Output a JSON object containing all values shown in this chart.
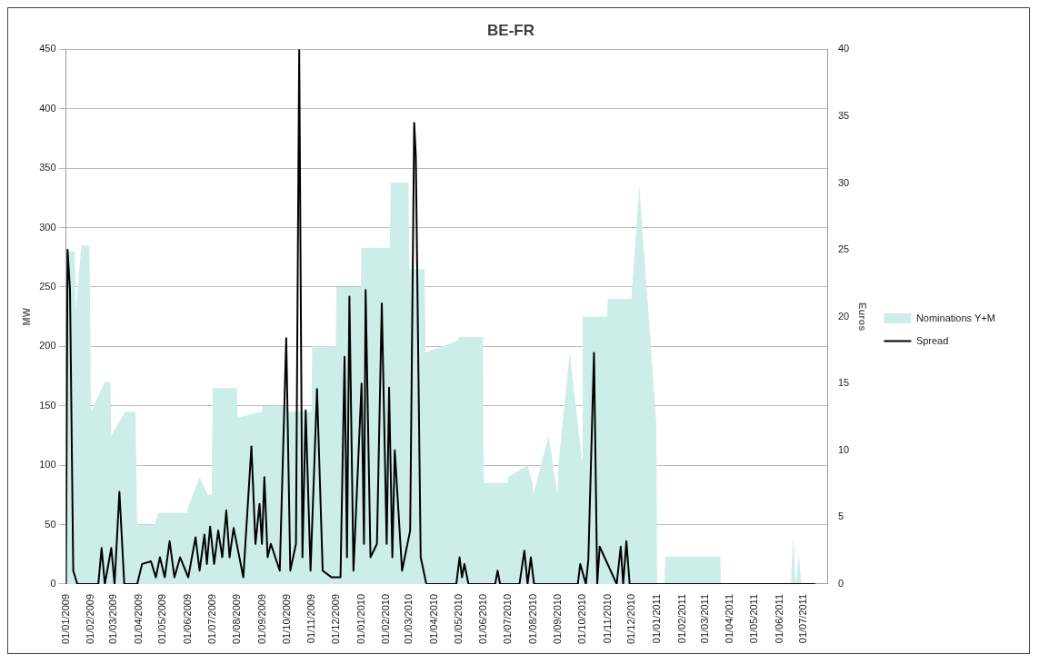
{
  "chart_data": {
    "type": "area",
    "title": "BE-FR",
    "ylabel": "MW",
    "y2label": "Euros",
    "xlim": [
      "2009-01-01",
      "2011-07-31"
    ],
    "xticks": [
      {
        "value": "2009-01-01",
        "label": "01/01/2009"
      },
      {
        "value": "2009-02-01",
        "label": "01/02/2009"
      },
      {
        "value": "2009-03-01",
        "label": "01/03/2009"
      },
      {
        "value": "2009-04-01",
        "label": "01/04/2009"
      },
      {
        "value": "2009-05-01",
        "label": "01/05/2009"
      },
      {
        "value": "2009-06-01",
        "label": "01/06/2009"
      },
      {
        "value": "2009-07-01",
        "label": "01/07/2009"
      },
      {
        "value": "2009-08-01",
        "label": "01/08/2009"
      },
      {
        "value": "2009-09-01",
        "label": "01/09/2009"
      },
      {
        "value": "2009-10-01",
        "label": "01/10/2009"
      },
      {
        "value": "2009-11-01",
        "label": "01/11/2009"
      },
      {
        "value": "2009-12-01",
        "label": "01/12/2009"
      },
      {
        "value": "2010-01-01",
        "label": "01/01/2010"
      },
      {
        "value": "2010-02-01",
        "label": "01/02/2010"
      },
      {
        "value": "2010-03-01",
        "label": "01/03/2010"
      },
      {
        "value": "2010-04-01",
        "label": "01/04/2010"
      },
      {
        "value": "2010-05-01",
        "label": "01/05/2010"
      },
      {
        "value": "2010-06-01",
        "label": "01/06/2010"
      },
      {
        "value": "2010-07-01",
        "label": "01/07/2010"
      },
      {
        "value": "2010-08-01",
        "label": "01/08/2010"
      },
      {
        "value": "2010-09-01",
        "label": "01/09/2010"
      },
      {
        "value": "2010-10-01",
        "label": "01/10/2010"
      },
      {
        "value": "2010-11-01",
        "label": "01/11/2010"
      },
      {
        "value": "2010-12-01",
        "label": "01/12/2010"
      },
      {
        "value": "2011-01-01",
        "label": "01/01/2011"
      },
      {
        "value": "2011-02-01",
        "label": "01/02/2011"
      },
      {
        "value": "2011-03-01",
        "label": "01/03/2011"
      },
      {
        "value": "2011-04-01",
        "label": "01/04/2011"
      },
      {
        "value": "2011-05-01",
        "label": "01/05/2011"
      },
      {
        "value": "2011-06-01",
        "label": "01/06/2011"
      },
      {
        "value": "2011-07-01",
        "label": "01/07/2011"
      }
    ],
    "ylim": [
      0,
      450
    ],
    "yticks": [
      0,
      50,
      100,
      150,
      200,
      250,
      300,
      350,
      400,
      450
    ],
    "y2lim": [
      0,
      40
    ],
    "y2ticks": [
      0,
      5,
      10,
      15,
      20,
      25,
      30,
      35,
      40
    ],
    "grid": "y",
    "legend": "right",
    "series": [
      {
        "name": "Nominations Y+M",
        "color": "#cdeee8",
        "x": [
          "2009-01-01",
          "2009-01-12",
          "2009-01-13",
          "2009-01-20",
          "2009-01-30",
          "2009-02-01",
          "2009-02-18",
          "2009-02-25",
          "2009-02-26",
          "2009-03-15",
          "2009-03-28",
          "2009-03-30",
          "2009-04-20",
          "2009-04-25",
          "2009-05-31",
          "2009-06-01",
          "2009-06-15",
          "2009-06-25",
          "2009-06-30",
          "2009-07-01",
          "2009-07-31",
          "2009-08-01",
          "2009-08-31",
          "2009-09-01",
          "2009-09-30",
          "2009-10-01",
          "2009-10-31",
          "2009-11-01",
          "2009-11-30",
          "2009-12-01",
          "2009-12-31",
          "2010-01-01",
          "2010-02-05",
          "2010-02-06",
          "2010-02-28",
          "2010-03-01",
          "2010-03-20",
          "2010-03-21",
          "2010-04-30",
          "2010-05-01",
          "2010-05-31",
          "2010-06-01",
          "2010-06-30",
          "2010-07-01",
          "2010-07-25",
          "2010-07-31",
          "2010-08-01",
          "2010-08-20",
          "2010-08-31",
          "2010-09-01",
          "2010-09-15",
          "2010-09-30",
          "2010-10-01",
          "2010-10-31",
          "2010-11-01",
          "2010-11-30",
          "2010-12-10",
          "2010-12-20",
          "2010-12-31",
          "2011-01-01",
          "2011-01-10",
          "2011-01-11",
          "2011-03-20",
          "2011-03-21",
          "2011-06-15",
          "2011-06-18",
          "2011-06-21",
          "2011-06-25",
          "2011-06-28",
          "2011-07-15"
        ],
        "values": [
          280,
          280,
          230,
          285,
          285,
          145,
          170,
          170,
          125,
          145,
          145,
          50,
          50,
          60,
          60,
          65,
          90,
          75,
          75,
          165,
          165,
          140,
          145,
          150,
          150,
          145,
          145,
          200,
          200,
          250,
          250,
          283,
          283,
          338,
          338,
          265,
          265,
          195,
          205,
          208,
          208,
          85,
          85,
          90,
          100,
          85,
          75,
          125,
          75,
          100,
          195,
          105,
          225,
          225,
          240,
          240,
          335,
          240,
          135,
          0,
          0,
          23,
          23,
          0,
          0,
          40,
          0,
          25,
          0,
          0
        ]
      },
      {
        "name": "Spread",
        "type": "line",
        "axis": "y2",
        "color": "#000000",
        "x": [
          "2009-01-01",
          "2009-01-03",
          "2009-01-06",
          "2009-01-10",
          "2009-01-15",
          "2009-02-10",
          "2009-02-14",
          "2009-02-18",
          "2009-02-26",
          "2009-03-02",
          "2009-03-08",
          "2009-03-14",
          "2009-03-30",
          "2009-04-05",
          "2009-04-16",
          "2009-04-22",
          "2009-04-27",
          "2009-05-03",
          "2009-05-09",
          "2009-05-15",
          "2009-05-22",
          "2009-06-01",
          "2009-06-10",
          "2009-06-15",
          "2009-06-21",
          "2009-06-24",
          "2009-06-28",
          "2009-07-03",
          "2009-07-08",
          "2009-07-13",
          "2009-07-18",
          "2009-07-22",
          "2009-07-27",
          "2009-08-08",
          "2009-08-18",
          "2009-08-23",
          "2009-08-28",
          "2009-08-31",
          "2009-09-03",
          "2009-09-07",
          "2009-09-11",
          "2009-09-22",
          "2009-09-30",
          "2009-10-05",
          "2009-10-12",
          "2009-10-16",
          "2009-10-20",
          "2009-10-24",
          "2009-10-30",
          "2009-11-07",
          "2009-11-14",
          "2009-11-25",
          "2009-12-06",
          "2009-12-11",
          "2009-12-14",
          "2009-12-17",
          "2009-12-22",
          "2010-01-01",
          "2010-01-04",
          "2010-01-06",
          "2010-01-12",
          "2010-01-20",
          "2010-01-26",
          "2010-02-01",
          "2010-02-04",
          "2010-02-08",
          "2010-02-11",
          "2010-02-20",
          "2010-03-02",
          "2010-03-07",
          "2010-03-09",
          "2010-03-15",
          "2010-03-22",
          "2010-04-28",
          "2010-05-02",
          "2010-05-05",
          "2010-05-08",
          "2010-05-13",
          "2010-06-15",
          "2010-06-18",
          "2010-06-21",
          "2010-07-15",
          "2010-07-21",
          "2010-07-25",
          "2010-07-29",
          "2010-08-02",
          "2010-09-25",
          "2010-09-28",
          "2010-10-05",
          "2010-10-08",
          "2010-10-15",
          "2010-10-19",
          "2010-10-22",
          "2010-11-12",
          "2010-11-17",
          "2010-11-20",
          "2010-11-24",
          "2010-11-28",
          "2011-07-15"
        ],
        "values": [
          0,
          25,
          22,
          1,
          0,
          0,
          2.7,
          0,
          2.7,
          0,
          6.9,
          0,
          0,
          1.5,
          1.7,
          0.5,
          2,
          0.5,
          3.2,
          0.5,
          2,
          0.5,
          3.5,
          1,
          3.7,
          1.5,
          4.3,
          1.5,
          4,
          2,
          5.5,
          2,
          4.2,
          0.5,
          10.3,
          3,
          6,
          3,
          8,
          2,
          3,
          1,
          18.4,
          1,
          3,
          40,
          2,
          13,
          1,
          14.6,
          1,
          0.5,
          0.5,
          17,
          2,
          21.5,
          1,
          15,
          3,
          22,
          2,
          3,
          21,
          3,
          14.7,
          2,
          10,
          1,
          4,
          34.5,
          32,
          2,
          0,
          0,
          2,
          0.5,
          1.5,
          0,
          0,
          1,
          0,
          0,
          2.5,
          0,
          2,
          0,
          0,
          1.5,
          0,
          1.8,
          17.3,
          0,
          2.8,
          0,
          2.8,
          0,
          3.2,
          0,
          0
        ]
      }
    ]
  }
}
